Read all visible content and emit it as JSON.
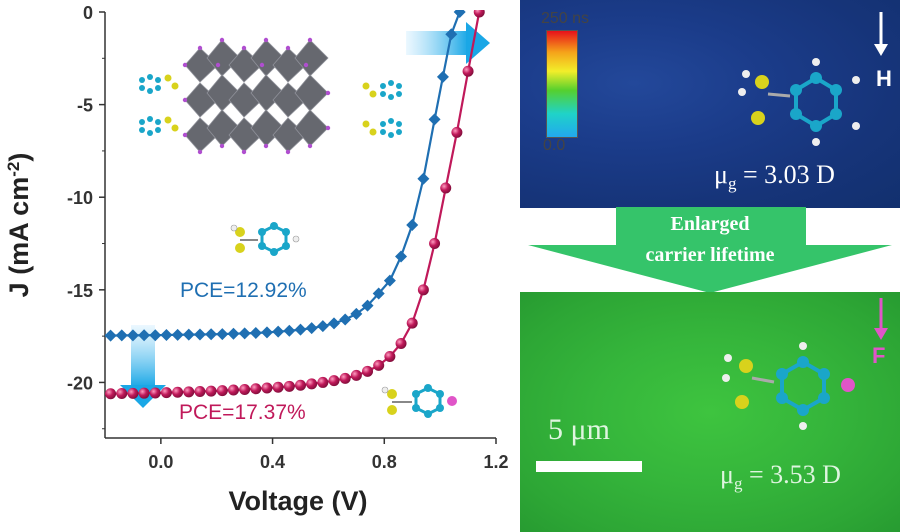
{
  "chart_data": {
    "type": "line",
    "xlabel": "Voltage (V)",
    "ylabel": "J (mA cm-2)",
    "xlim": [
      -0.2,
      1.2
    ],
    "ylim": [
      -23,
      0
    ],
    "xticks": [
      "0.0",
      "0.4",
      "0.8",
      "1.2"
    ],
    "yticks": [
      "0",
      "-5",
      "-10",
      "-15",
      "-20"
    ],
    "series": [
      {
        "name": "PCE=12.92%",
        "color": "#1f6fb2",
        "marker": "diamond",
        "points": [
          [
            -0.22,
            -17.47
          ],
          [
            -0.18,
            -17.47
          ],
          [
            -0.14,
            -17.46
          ],
          [
            -0.1,
            -17.46
          ],
          [
            -0.06,
            -17.45
          ],
          [
            -0.02,
            -17.45
          ],
          [
            0.02,
            -17.44
          ],
          [
            0.06,
            -17.43
          ],
          [
            0.1,
            -17.42
          ],
          [
            0.14,
            -17.41
          ],
          [
            0.18,
            -17.4
          ],
          [
            0.22,
            -17.39
          ],
          [
            0.26,
            -17.37
          ],
          [
            0.3,
            -17.35
          ],
          [
            0.34,
            -17.33
          ],
          [
            0.38,
            -17.3
          ],
          [
            0.42,
            -17.26
          ],
          [
            0.46,
            -17.21
          ],
          [
            0.5,
            -17.15
          ],
          [
            0.54,
            -17.07
          ],
          [
            0.58,
            -16.96
          ],
          [
            0.62,
            -16.81
          ],
          [
            0.66,
            -16.6
          ],
          [
            0.7,
            -16.3
          ],
          [
            0.74,
            -15.85
          ],
          [
            0.78,
            -15.2
          ],
          [
            0.82,
            -14.5
          ],
          [
            0.86,
            -13.2
          ],
          [
            0.9,
            -11.5
          ],
          [
            0.94,
            -9.0
          ],
          [
            0.98,
            -5.8
          ],
          [
            1.01,
            -3.5
          ],
          [
            1.04,
            -1.2
          ],
          [
            1.07,
            0.0
          ]
        ]
      },
      {
        "name": "PCE=17.37%",
        "color": "#c0195a",
        "marker": "circle",
        "points": [
          [
            -0.22,
            -20.62
          ],
          [
            -0.18,
            -20.61
          ],
          [
            -0.14,
            -20.6
          ],
          [
            -0.1,
            -20.59
          ],
          [
            -0.06,
            -20.58
          ],
          [
            -0.02,
            -20.57
          ],
          [
            0.02,
            -20.55
          ],
          [
            0.06,
            -20.53
          ],
          [
            0.1,
            -20.51
          ],
          [
            0.14,
            -20.49
          ],
          [
            0.18,
            -20.47
          ],
          [
            0.22,
            -20.44
          ],
          [
            0.26,
            -20.41
          ],
          [
            0.3,
            -20.38
          ],
          [
            0.34,
            -20.34
          ],
          [
            0.38,
            -20.3
          ],
          [
            0.42,
            -20.26
          ],
          [
            0.46,
            -20.21
          ],
          [
            0.5,
            -20.15
          ],
          [
            0.54,
            -20.08
          ],
          [
            0.58,
            -20.0
          ],
          [
            0.62,
            -19.9
          ],
          [
            0.66,
            -19.78
          ],
          [
            0.7,
            -19.62
          ],
          [
            0.74,
            -19.4
          ],
          [
            0.78,
            -19.08
          ],
          [
            0.82,
            -18.6
          ],
          [
            0.86,
            -17.9
          ],
          [
            0.9,
            -16.8
          ],
          [
            0.94,
            -15.0
          ],
          [
            0.98,
            -12.5
          ],
          [
            1.02,
            -9.5
          ],
          [
            1.06,
            -6.5
          ],
          [
            1.1,
            -3.2
          ],
          [
            1.14,
            0.0
          ]
        ]
      }
    ]
  },
  "annotations": {
    "pce_blue": "PCE=12.92%",
    "pce_red": "PCE=17.37%"
  },
  "images": {
    "colorbar_max": "250 ns",
    "colorbar_min": "0.0",
    "panel_top_label": "H",
    "panel_top_mu_prefix": "μ",
    "panel_top_mu_sub": "g",
    "panel_top_mu_value": " = 3.03 D",
    "banner_line1": "Enlarged",
    "banner_line2": "carrier lifetime",
    "panel_bottom_label": "F",
    "scale_label": "5 μm",
    "panel_bottom_mu_prefix": "μ",
    "panel_bottom_mu_sub": "g",
    "panel_bottom_mu_value": " = 3.53 D"
  },
  "colors": {
    "blue": "#1f6fb2",
    "red": "#c0195a",
    "banner": "#2fc46a",
    "molecule_carbon": "#1aa6c9",
    "molecule_sulfur": "#d8d21c",
    "fluorine": "#e055c8"
  }
}
